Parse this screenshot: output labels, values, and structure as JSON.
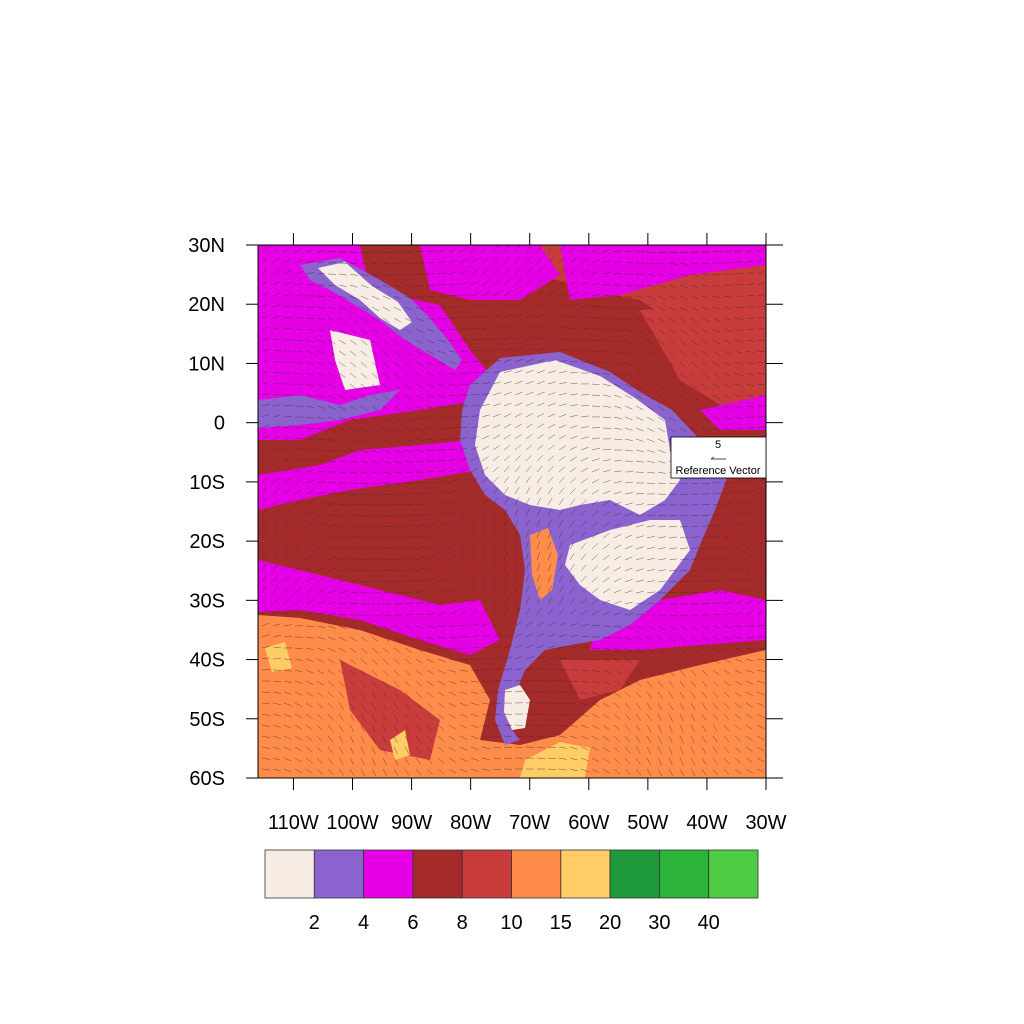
{
  "map": {
    "x_axis_labels": [
      "110W",
      "100W",
      "90W",
      "80W",
      "70W",
      "60W",
      "50W",
      "40W",
      "30W"
    ],
    "y_axis_labels": [
      "30N",
      "20N",
      "10N",
      "0",
      "10S",
      "20S",
      "30S",
      "40S",
      "50S",
      "60S"
    ],
    "lon_range": [
      -116,
      -30
    ],
    "lat_range": [
      -60,
      30
    ],
    "reference_vector": {
      "value": "5",
      "label": "Reference Vector"
    }
  },
  "legend": {
    "colors": [
      "#f8ede4",
      "#8a63cf",
      "#e600e6",
      "#a52a2a",
      "#c93c3c",
      "#ff8c4a",
      "#ffcc66",
      "#1e9a3a",
      "#2cb33a",
      "#4dcc44"
    ],
    "labels": [
      "2",
      "4",
      "6",
      "8",
      "10",
      "15",
      "20",
      "30",
      "40"
    ]
  }
}
